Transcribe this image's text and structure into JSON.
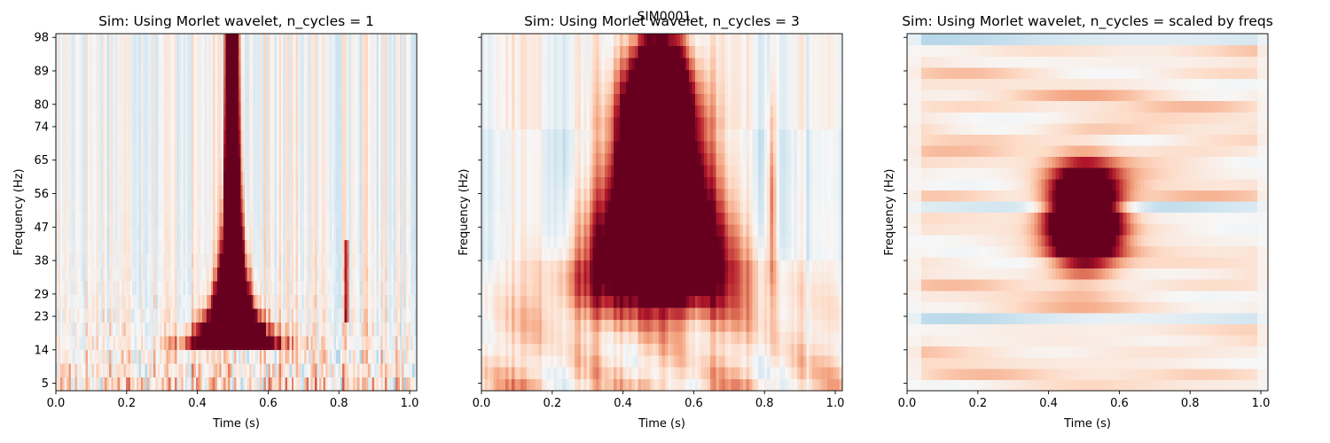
{
  "figure": {
    "suptitle": "SIM0001"
  },
  "colormap": {
    "name": "RdBu_r",
    "stops": [
      "#053061",
      "#2166ac",
      "#4393c3",
      "#92c5de",
      "#d1e5f0",
      "#f7f7f7",
      "#fddbc7",
      "#f4a582",
      "#d6604d",
      "#b2182b",
      "#67001f"
    ]
  },
  "chart_data": [
    {
      "type": "heatmap",
      "title": "Sim: Using Morlet wavelet, n_cycles = 1",
      "xlabel": "Time (s)",
      "ylabel": "Frequency (Hz)",
      "xlim": [
        0.0,
        1.02
      ],
      "ylim": [
        3,
        99
      ],
      "xticks": [
        "0.0",
        "0.2",
        "0.4",
        "0.6",
        "0.8",
        "1.0"
      ],
      "yticks": [
        "5",
        "14",
        "23",
        "29",
        "38",
        "47",
        "56",
        "65",
        "74",
        "80",
        "89",
        "98"
      ],
      "show_ytick_labels": true,
      "power_peak": {
        "time": 0.5,
        "freq_range": [
          17,
          99
        ]
      }
    },
    {
      "type": "heatmap",
      "title": "Sim: Using Morlet wavelet, n_cycles = 3",
      "xlabel": "Time (s)",
      "ylabel": "Frequency (Hz)",
      "xlim": [
        0.0,
        1.02
      ],
      "ylim": [
        3,
        99
      ],
      "xticks": [
        "0.0",
        "0.2",
        "0.4",
        "0.6",
        "0.8",
        "1.0"
      ],
      "yticks": [
        "5",
        "14",
        "23",
        "29",
        "38",
        "47",
        "56",
        "65",
        "74",
        "80",
        "89",
        "98"
      ],
      "show_ytick_labels": false,
      "power_peak": {
        "time": 0.5,
        "freq_range": [
          28,
          96
        ]
      }
    },
    {
      "type": "heatmap",
      "title": "Sim: Using Morlet wavelet, n_cycles = scaled by freqs",
      "xlabel": "Time (s)",
      "ylabel": "Frequency (Hz)",
      "xlim": [
        0.0,
        1.02
      ],
      "ylim": [
        3,
        99
      ],
      "xticks": [
        "0.0",
        "0.2",
        "0.4",
        "0.6",
        "0.8",
        "1.0"
      ],
      "yticks": [
        "5",
        "14",
        "23",
        "29",
        "38",
        "47",
        "56",
        "65",
        "74",
        "80",
        "89",
        "98"
      ],
      "show_ytick_labels": false,
      "power_peak": {
        "time": 0.5,
        "freq_range": [
          40,
          60
        ]
      }
    }
  ]
}
